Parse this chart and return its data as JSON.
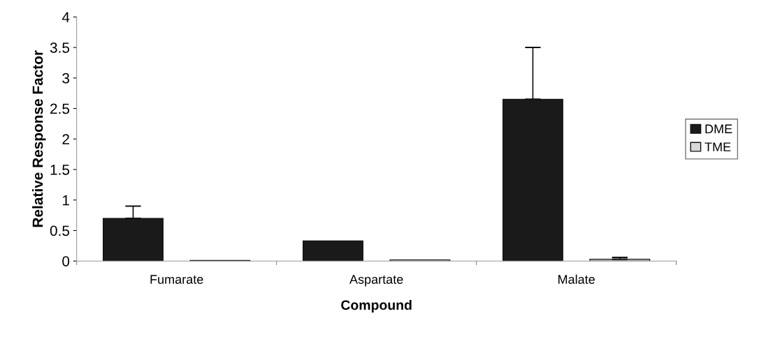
{
  "chart_data": {
    "type": "bar",
    "xlabel": "Compound",
    "ylabel": "Relative Response Factor",
    "categories": [
      "Fumarate",
      "Aspartate",
      "Malate"
    ],
    "series": [
      {
        "name": "DME",
        "color": "#1a1a1a",
        "values": [
          0.7,
          0.33,
          2.65
        ],
        "errors": [
          [
            0.7,
            0.9
          ],
          null,
          [
            2.65,
            3.5
          ]
        ]
      },
      {
        "name": "TME",
        "color": "#d9d9d9",
        "values": [
          0.01,
          0.02,
          0.03
        ],
        "errors": [
          null,
          null,
          [
            0.03,
            0.06
          ]
        ]
      }
    ],
    "ylim": [
      0,
      4
    ],
    "yticks": [
      0,
      0.5,
      1,
      1.5,
      2,
      2.5,
      3,
      3.5,
      4
    ],
    "grid": false,
    "legend": "right"
  }
}
